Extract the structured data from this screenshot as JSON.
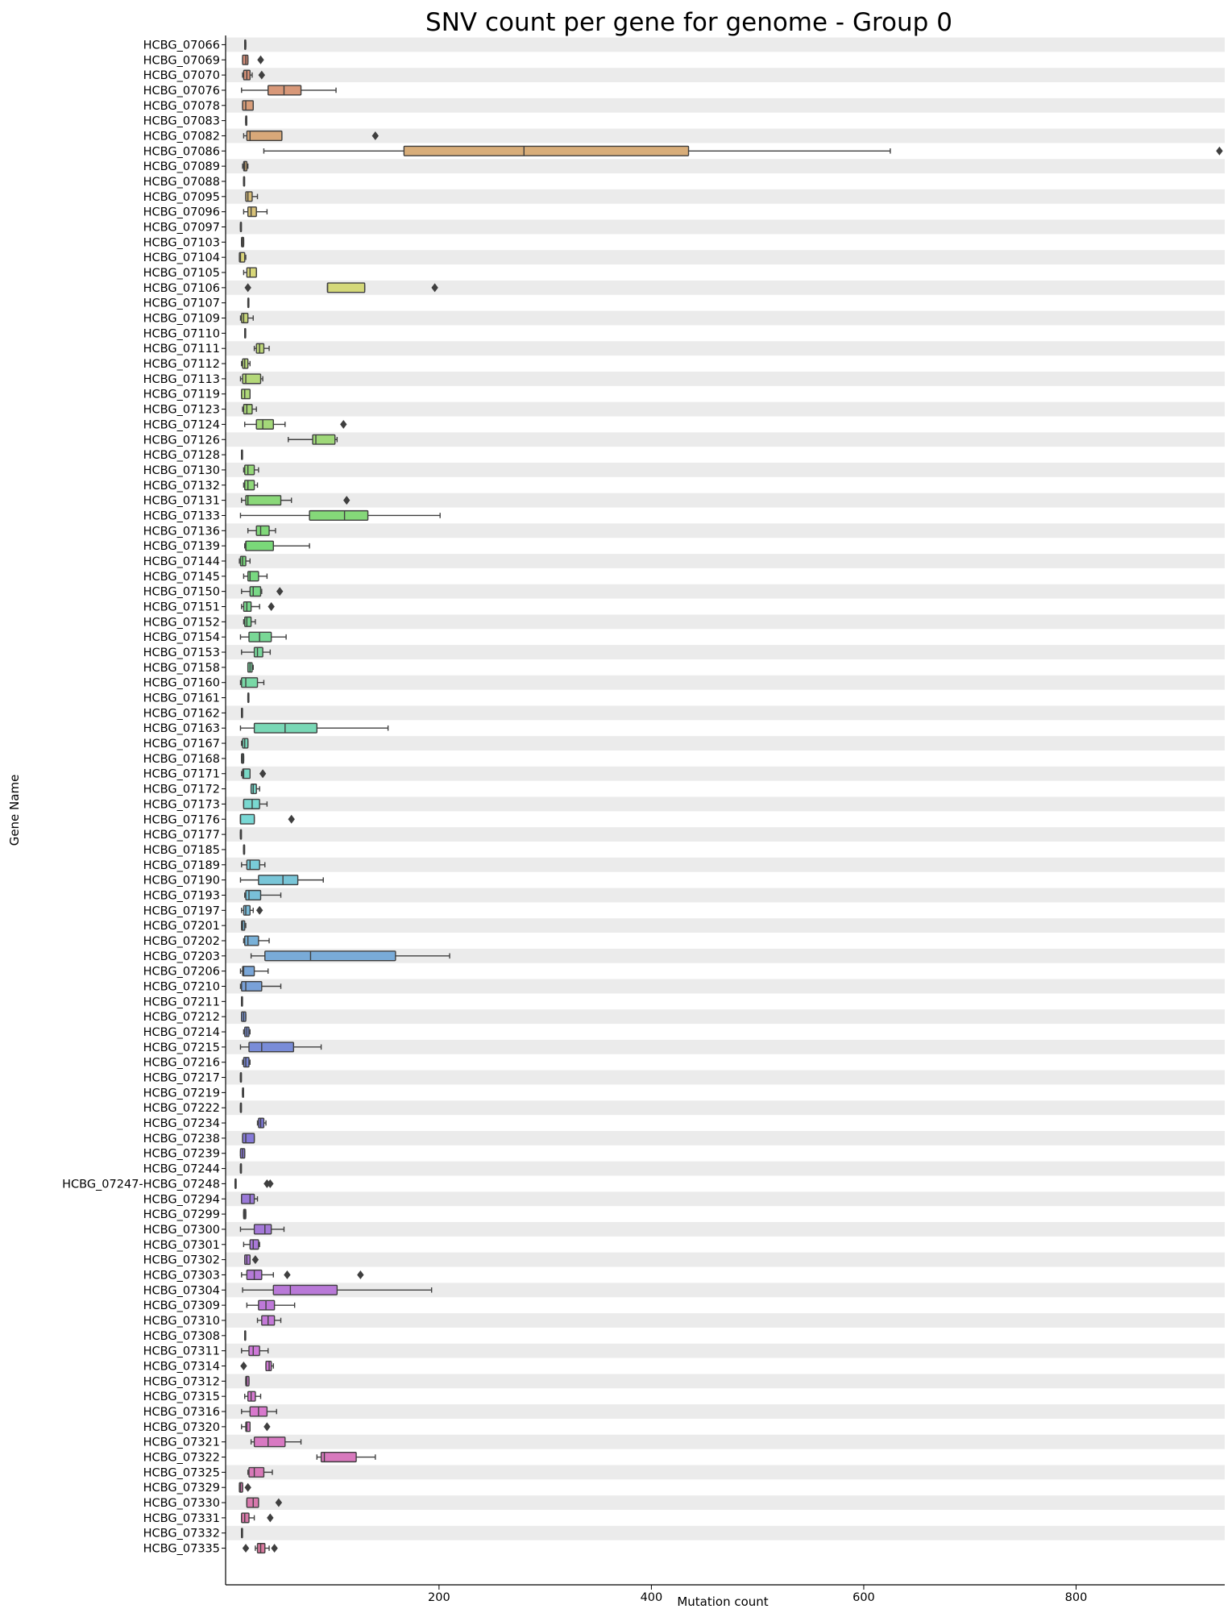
{
  "chart_data": {
    "type": "boxplot",
    "orientation": "horizontal",
    "title": "SNV count per gene for genome - Group 0",
    "xlabel": "Mutation count",
    "ylabel": "Gene Name",
    "x_ticks": [
      200,
      400,
      600,
      800
    ],
    "xlim": [
      -1,
      940
    ],
    "grid": false,
    "alternating_row_bands": true,
    "genes": [
      {
        "name": "HCBG_07066",
        "whisker_low": 17,
        "q1": 17,
        "median": 17,
        "q3": 18,
        "whisker_high": 18,
        "outliers": []
      },
      {
        "name": "HCBG_07069",
        "whisker_low": 15,
        "q1": 15,
        "median": 18,
        "q3": 20,
        "whisker_high": 20,
        "outliers": [
          32
        ]
      },
      {
        "name": "HCBG_07070",
        "whisker_low": 15,
        "q1": 16,
        "median": 19,
        "q3": 22,
        "whisker_high": 24,
        "outliers": [
          33
        ]
      },
      {
        "name": "HCBG_07076",
        "whisker_low": 14,
        "q1": 39,
        "median": 54,
        "q3": 70,
        "whisker_high": 103,
        "outliers": []
      },
      {
        "name": "HCBG_07078",
        "whisker_low": 15,
        "q1": 15,
        "median": 18,
        "q3": 25,
        "whisker_high": 25,
        "outliers": []
      },
      {
        "name": "HCBG_07083",
        "whisker_low": 18,
        "q1": 18,
        "median": 18,
        "q3": 18,
        "whisker_high": 18,
        "outliers": []
      },
      {
        "name": "HCBG_07082",
        "whisker_low": 16,
        "q1": 19,
        "median": 22,
        "q3": 52,
        "whisker_high": 52,
        "outliers": [
          140
        ]
      },
      {
        "name": "HCBG_07086",
        "whisker_low": 35,
        "q1": 167,
        "median": 280,
        "q3": 435,
        "whisker_high": 625,
        "outliers": [
          935
        ]
      },
      {
        "name": "HCBG_07089",
        "whisker_low": 15,
        "q1": 16,
        "median": 17,
        "q3": 19,
        "whisker_high": 20,
        "outliers": []
      },
      {
        "name": "HCBG_07088",
        "whisker_low": 16,
        "q1": 16,
        "median": 16,
        "q3": 16,
        "whisker_high": 16,
        "outliers": []
      },
      {
        "name": "HCBG_07095",
        "whisker_low": 18,
        "q1": 18,
        "median": 20,
        "q3": 24,
        "whisker_high": 29,
        "outliers": []
      },
      {
        "name": "HCBG_07096",
        "whisker_low": 16,
        "q1": 20,
        "median": 23,
        "q3": 28,
        "whisker_high": 38,
        "outliers": []
      },
      {
        "name": "HCBG_07097",
        "whisker_low": 13,
        "q1": 13,
        "median": 13,
        "q3": 13,
        "whisker_high": 13,
        "outliers": []
      },
      {
        "name": "HCBG_07103",
        "whisker_low": 14,
        "q1": 14,
        "median": 15,
        "q3": 16,
        "whisker_high": 16,
        "outliers": []
      },
      {
        "name": "HCBG_07104",
        "whisker_low": 12,
        "q1": 12,
        "median": 13,
        "q3": 17,
        "whisker_high": 18,
        "outliers": []
      },
      {
        "name": "HCBG_07105",
        "whisker_low": 16,
        "q1": 19,
        "median": 22,
        "q3": 28,
        "whisker_high": 28,
        "outliers": []
      },
      {
        "name": "HCBG_07106",
        "whisker_low": 95,
        "q1": 95,
        "median": 95,
        "q3": 130,
        "whisker_high": 130,
        "outliers": [
          20,
          196
        ]
      },
      {
        "name": "HCBG_07107",
        "whisker_low": 20,
        "q1": 20,
        "median": 20,
        "q3": 20,
        "whisker_high": 20,
        "outliers": []
      },
      {
        "name": "HCBG_07109",
        "whisker_low": 13,
        "q1": 14,
        "median": 16,
        "q3": 20,
        "whisker_high": 25,
        "outliers": []
      },
      {
        "name": "HCBG_07110",
        "whisker_low": 17,
        "q1": 17,
        "median": 17,
        "q3": 17,
        "whisker_high": 17,
        "outliers": []
      },
      {
        "name": "HCBG_07111",
        "whisker_low": 26,
        "q1": 28,
        "median": 31,
        "q3": 35,
        "whisker_high": 40,
        "outliers": []
      },
      {
        "name": "HCBG_07112",
        "whisker_low": 14,
        "q1": 15,
        "median": 17,
        "q3": 20,
        "whisker_high": 22,
        "outliers": []
      },
      {
        "name": "HCBG_07113",
        "whisker_low": 13,
        "q1": 15,
        "median": 18,
        "q3": 32,
        "whisker_high": 34,
        "outliers": []
      },
      {
        "name": "HCBG_07119",
        "whisker_low": 14,
        "q1": 14,
        "median": 17,
        "q3": 22,
        "whisker_high": 22,
        "outliers": []
      },
      {
        "name": "HCBG_07123",
        "whisker_low": 15,
        "q1": 16,
        "median": 19,
        "q3": 24,
        "whisker_high": 28,
        "outliers": []
      },
      {
        "name": "HCBG_07124",
        "whisker_low": 17,
        "q1": 28,
        "median": 34,
        "q3": 44,
        "whisker_high": 55,
        "outliers": [
          110
        ]
      },
      {
        "name": "HCBG_07126",
        "whisker_low": 58,
        "q1": 81,
        "median": 84,
        "q3": 102,
        "whisker_high": 104,
        "outliers": []
      },
      {
        "name": "HCBG_07128",
        "whisker_low": 14,
        "q1": 14,
        "median": 14,
        "q3": 14,
        "whisker_high": 14,
        "outliers": []
      },
      {
        "name": "HCBG_07130",
        "whisker_low": 16,
        "q1": 17,
        "median": 20,
        "q3": 26,
        "whisker_high": 30,
        "outliers": []
      },
      {
        "name": "HCBG_07132",
        "whisker_low": 16,
        "q1": 17,
        "median": 20,
        "q3": 26,
        "whisker_high": 29,
        "outliers": []
      },
      {
        "name": "HCBG_07131",
        "whisker_low": 14,
        "q1": 18,
        "median": 20,
        "q3": 51,
        "whisker_high": 61,
        "outliers": [
          113
        ]
      },
      {
        "name": "HCBG_07133",
        "whisker_low": 13,
        "q1": 78,
        "median": 111,
        "q3": 133,
        "whisker_high": 201,
        "outliers": []
      },
      {
        "name": "HCBG_07136",
        "whisker_low": 20,
        "q1": 28,
        "median": 32,
        "q3": 40,
        "whisker_high": 46,
        "outliers": []
      },
      {
        "name": "HCBG_07139",
        "whisker_low": 17,
        "q1": 18,
        "median": 18,
        "q3": 44,
        "whisker_high": 78,
        "outliers": []
      },
      {
        "name": "HCBG_07144",
        "whisker_low": 12,
        "q1": 13,
        "median": 15,
        "q3": 18,
        "whisker_high": 22,
        "outliers": []
      },
      {
        "name": "HCBG_07145",
        "whisker_low": 16,
        "q1": 20,
        "median": 22,
        "q3": 30,
        "whisker_high": 38,
        "outliers": []
      },
      {
        "name": "HCBG_07150",
        "whisker_low": 14,
        "q1": 22,
        "median": 25,
        "q3": 32,
        "whisker_high": 33,
        "outliers": [
          50
        ]
      },
      {
        "name": "HCBG_07151",
        "whisker_low": 14,
        "q1": 16,
        "median": 19,
        "q3": 23,
        "whisker_high": 31,
        "outliers": [
          42
        ]
      },
      {
        "name": "HCBG_07152",
        "whisker_low": 16,
        "q1": 17,
        "median": 19,
        "q3": 23,
        "whisker_high": 27,
        "outliers": []
      },
      {
        "name": "HCBG_07154",
        "whisker_low": 13,
        "q1": 21,
        "median": 31,
        "q3": 42,
        "whisker_high": 56,
        "outliers": []
      },
      {
        "name": "HCBG_07153",
        "whisker_low": 14,
        "q1": 26,
        "median": 29,
        "q3": 34,
        "whisker_high": 41,
        "outliers": []
      },
      {
        "name": "HCBG_07158",
        "whisker_low": 20,
        "q1": 20,
        "median": 22,
        "q3": 24,
        "whisker_high": 25,
        "outliers": []
      },
      {
        "name": "HCBG_07160",
        "whisker_low": 13,
        "q1": 14,
        "median": 18,
        "q3": 29,
        "whisker_high": 35,
        "outliers": []
      },
      {
        "name": "HCBG_07161",
        "whisker_low": 20,
        "q1": 20,
        "median": 20,
        "q3": 20,
        "whisker_high": 20,
        "outliers": []
      },
      {
        "name": "HCBG_07162",
        "whisker_low": 14,
        "q1": 14,
        "median": 14,
        "q3": 14,
        "whisker_high": 14,
        "outliers": []
      },
      {
        "name": "HCBG_07163",
        "whisker_low": 13,
        "q1": 26,
        "median": 55,
        "q3": 85,
        "whisker_high": 152,
        "outliers": []
      },
      {
        "name": "HCBG_07167",
        "whisker_low": 14,
        "q1": 15,
        "median": 17,
        "q3": 20,
        "whisker_high": 20,
        "outliers": []
      },
      {
        "name": "HCBG_07168",
        "whisker_low": 14,
        "q1": 14,
        "median": 15,
        "q3": 16,
        "whisker_high": 16,
        "outliers": []
      },
      {
        "name": "HCBG_07171",
        "whisker_low": 14,
        "q1": 15,
        "median": 16,
        "q3": 22,
        "whisker_high": 22,
        "outliers": [
          34
        ]
      },
      {
        "name": "HCBG_07172",
        "whisker_low": 23,
        "q1": 23,
        "median": 25,
        "q3": 28,
        "whisker_high": 31,
        "outliers": []
      },
      {
        "name": "HCBG_07173",
        "whisker_low": 16,
        "q1": 16,
        "median": 24,
        "q3": 31,
        "whisker_high": 38,
        "outliers": []
      },
      {
        "name": "HCBG_07176",
        "whisker_low": 13,
        "q1": 13,
        "median": 13,
        "q3": 26,
        "whisker_high": 26,
        "outliers": [
          61
        ]
      },
      {
        "name": "HCBG_07177",
        "whisker_low": 13,
        "q1": 13,
        "median": 13,
        "q3": 13,
        "whisker_high": 13,
        "outliers": []
      },
      {
        "name": "HCBG_07185",
        "whisker_low": 16,
        "q1": 16,
        "median": 16,
        "q3": 16,
        "whisker_high": 16,
        "outliers": []
      },
      {
        "name": "HCBG_07189",
        "whisker_low": 14,
        "q1": 19,
        "median": 22,
        "q3": 31,
        "whisker_high": 36,
        "outliers": []
      },
      {
        "name": "HCBG_07190",
        "whisker_low": 13,
        "q1": 30,
        "median": 53,
        "q3": 67,
        "whisker_high": 91,
        "outliers": []
      },
      {
        "name": "HCBG_07193",
        "whisker_low": 17,
        "q1": 18,
        "median": 21,
        "q3": 32,
        "whisker_high": 51,
        "outliers": []
      },
      {
        "name": "HCBG_07197",
        "whisker_low": 14,
        "q1": 16,
        "median": 18,
        "q3": 22,
        "whisker_high": 25,
        "outliers": [
          31
        ]
      },
      {
        "name": "HCBG_07201",
        "whisker_low": 14,
        "q1": 14,
        "median": 15,
        "q3": 17,
        "whisker_high": 18,
        "outliers": []
      },
      {
        "name": "HCBG_07202",
        "whisker_low": 16,
        "q1": 17,
        "median": 20,
        "q3": 30,
        "whisker_high": 40,
        "outliers": []
      },
      {
        "name": "HCBG_07203",
        "whisker_low": 23,
        "q1": 36,
        "median": 79,
        "q3": 159,
        "whisker_high": 210,
        "outliers": []
      },
      {
        "name": "HCBG_07206",
        "whisker_low": 13,
        "q1": 15,
        "median": 16,
        "q3": 26,
        "whisker_high": 39,
        "outliers": []
      },
      {
        "name": "HCBG_07210",
        "whisker_low": 13,
        "q1": 14,
        "median": 18,
        "q3": 33,
        "whisker_high": 51,
        "outliers": []
      },
      {
        "name": "HCBG_07211",
        "whisker_low": 14,
        "q1": 14,
        "median": 14,
        "q3": 14,
        "whisker_high": 14,
        "outliers": []
      },
      {
        "name": "HCBG_07212",
        "whisker_low": 14,
        "q1": 14,
        "median": 16,
        "q3": 18,
        "whisker_high": 18,
        "outliers": []
      },
      {
        "name": "HCBG_07214",
        "whisker_low": 16,
        "q1": 17,
        "median": 19,
        "q3": 21,
        "whisker_high": 22,
        "outliers": []
      },
      {
        "name": "HCBG_07215",
        "whisker_low": 13,
        "q1": 21,
        "median": 33,
        "q3": 63,
        "whisker_high": 89,
        "outliers": []
      },
      {
        "name": "HCBG_07216",
        "whisker_low": 15,
        "q1": 16,
        "median": 18,
        "q3": 21,
        "whisker_high": 22,
        "outliers": []
      },
      {
        "name": "HCBG_07217",
        "whisker_low": 13,
        "q1": 13,
        "median": 13,
        "q3": 13,
        "whisker_high": 13,
        "outliers": []
      },
      {
        "name": "HCBG_07219",
        "whisker_low": 15,
        "q1": 15,
        "median": 15,
        "q3": 15,
        "whisker_high": 15,
        "outliers": []
      },
      {
        "name": "HCBG_07222",
        "whisker_low": 13,
        "q1": 13,
        "median": 13,
        "q3": 13,
        "whisker_high": 13,
        "outliers": []
      },
      {
        "name": "HCBG_07234",
        "whisker_low": 29,
        "q1": 30,
        "median": 32,
        "q3": 35,
        "whisker_high": 37,
        "outliers": []
      },
      {
        "name": "HCBG_07238",
        "whisker_low": 15,
        "q1": 15,
        "median": 18,
        "q3": 26,
        "whisker_high": 26,
        "outliers": []
      },
      {
        "name": "HCBG_07239",
        "whisker_low": 13,
        "q1": 13,
        "median": 15,
        "q3": 17,
        "whisker_high": 17,
        "outliers": []
      },
      {
        "name": "HCBG_07244",
        "whisker_low": 13,
        "q1": 13,
        "median": 13,
        "q3": 13,
        "whisker_high": 13,
        "outliers": []
      },
      {
        "name": "HCBG_07247-HCBG_07248",
        "whisker_low": 8,
        "q1": 8,
        "median": 8,
        "q3": 8,
        "whisker_high": 8,
        "outliers": [
          38,
          41
        ]
      },
      {
        "name": "HCBG_07294",
        "whisker_low": 14,
        "q1": 14,
        "median": 22,
        "q3": 26,
        "whisker_high": 29,
        "outliers": []
      },
      {
        "name": "HCBG_07299",
        "whisker_low": 16,
        "q1": 16,
        "median": 17,
        "q3": 18,
        "whisker_high": 18,
        "outliers": []
      },
      {
        "name": "HCBG_07300",
        "whisker_low": 13,
        "q1": 26,
        "median": 36,
        "q3": 42,
        "whisker_high": 54,
        "outliers": []
      },
      {
        "name": "HCBG_07301",
        "whisker_low": 16,
        "q1": 22,
        "median": 25,
        "q3": 30,
        "whisker_high": 31,
        "outliers": []
      },
      {
        "name": "HCBG_07302",
        "whisker_low": 17,
        "q1": 17,
        "median": 19,
        "q3": 22,
        "whisker_high": 22,
        "outliers": [
          27
        ]
      },
      {
        "name": "HCBG_07303",
        "whisker_low": 14,
        "q1": 19,
        "median": 26,
        "q3": 33,
        "whisker_high": 44,
        "outliers": [
          57,
          126
        ]
      },
      {
        "name": "HCBG_07304",
        "whisker_low": 15,
        "q1": 44,
        "median": 60,
        "q3": 104,
        "whisker_high": 193,
        "outliers": []
      },
      {
        "name": "HCBG_07309",
        "whisker_low": 19,
        "q1": 30,
        "median": 37,
        "q3": 45,
        "whisker_high": 64,
        "outliers": []
      },
      {
        "name": "HCBG_07310",
        "whisker_low": 29,
        "q1": 33,
        "median": 39,
        "q3": 45,
        "whisker_high": 51,
        "outliers": []
      },
      {
        "name": "HCBG_07308",
        "whisker_low": 17,
        "q1": 17,
        "median": 17,
        "q3": 17,
        "whisker_high": 17,
        "outliers": []
      },
      {
        "name": "HCBG_07311",
        "whisker_low": 14,
        "q1": 21,
        "median": 25,
        "q3": 31,
        "whisker_high": 39,
        "outliers": []
      },
      {
        "name": "HCBG_07314",
        "whisker_low": 37,
        "q1": 37,
        "median": 40,
        "q3": 42,
        "whisker_high": 44,
        "outliers": [
          16
        ]
      },
      {
        "name": "HCBG_07312",
        "whisker_low": 18,
        "q1": 18,
        "median": 19,
        "q3": 21,
        "whisker_high": 21,
        "outliers": []
      },
      {
        "name": "HCBG_07315",
        "whisker_low": 17,
        "q1": 20,
        "median": 23,
        "q3": 27,
        "whisker_high": 32,
        "outliers": []
      },
      {
        "name": "HCBG_07316",
        "whisker_low": 14,
        "q1": 22,
        "median": 30,
        "q3": 38,
        "whisker_high": 47,
        "outliers": []
      },
      {
        "name": "HCBG_07320",
        "whisker_low": 14,
        "q1": 18,
        "median": 19,
        "q3": 22,
        "whisker_high": 22,
        "outliers": [
          38
        ]
      },
      {
        "name": "HCBG_07321",
        "whisker_low": 23,
        "q1": 26,
        "median": 39,
        "q3": 55,
        "whisker_high": 70,
        "outliers": []
      },
      {
        "name": "HCBG_07322",
        "whisker_low": 85,
        "q1": 89,
        "median": 92,
        "q3": 122,
        "whisker_high": 140,
        "outliers": []
      },
      {
        "name": "HCBG_07325",
        "whisker_low": 20,
        "q1": 21,
        "median": 26,
        "q3": 35,
        "whisker_high": 43,
        "outliers": []
      },
      {
        "name": "HCBG_07329",
        "whisker_low": 12,
        "q1": 12,
        "median": 13,
        "q3": 15,
        "whisker_high": 15,
        "outliers": [
          20
        ]
      },
      {
        "name": "HCBG_07330",
        "whisker_low": 19,
        "q1": 19,
        "median": 25,
        "q3": 30,
        "whisker_high": 30,
        "outliers": [
          49
        ]
      },
      {
        "name": "HCBG_07331",
        "whisker_low": 14,
        "q1": 14,
        "median": 17,
        "q3": 21,
        "whisker_high": 26,
        "outliers": [
          41
        ]
      },
      {
        "name": "HCBG_07332",
        "whisker_low": 14,
        "q1": 14,
        "median": 14,
        "q3": 14,
        "whisker_high": 14,
        "outliers": []
      },
      {
        "name": "HCBG_07335",
        "whisker_low": 27,
        "q1": 29,
        "median": 32,
        "q3": 36,
        "whisker_high": 40,
        "outliers": [
          18,
          45
        ]
      }
    ]
  }
}
